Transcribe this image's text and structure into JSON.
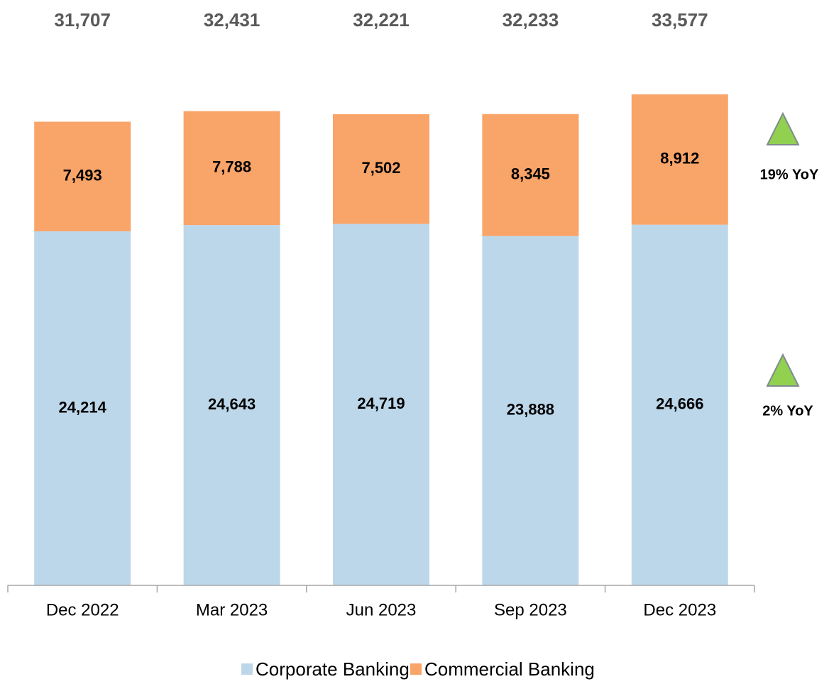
{
  "chart_data": {
    "type": "stacked_bar",
    "categories": [
      "Dec 2022",
      "Mar 2023",
      "Jun 2023",
      "Sep 2023",
      "Dec 2023"
    ],
    "series": [
      {
        "name": "Corporate Banking",
        "color": "#bdd7ea",
        "values": [
          24214,
          24643,
          24719,
          23888,
          24666
        ],
        "value_labels": [
          "24,214",
          "24,643",
          "24,719",
          "23,888",
          "24,666"
        ]
      },
      {
        "name": "Commercial Banking",
        "color": "#f9a468",
        "values": [
          7493,
          7788,
          7502,
          8345,
          8912
        ],
        "value_labels": [
          "7,493",
          "7,788",
          "7,502",
          "8,345",
          "8,912"
        ]
      }
    ],
    "totals": [
      31707,
      32431,
      32221,
      32233,
      33577
    ],
    "total_labels": [
      "31,707",
      "32,431",
      "32,221",
      "32,233",
      "33,577"
    ],
    "annotations": [
      "19% YoY",
      "2% YoY"
    ],
    "legend": "bottom"
  }
}
